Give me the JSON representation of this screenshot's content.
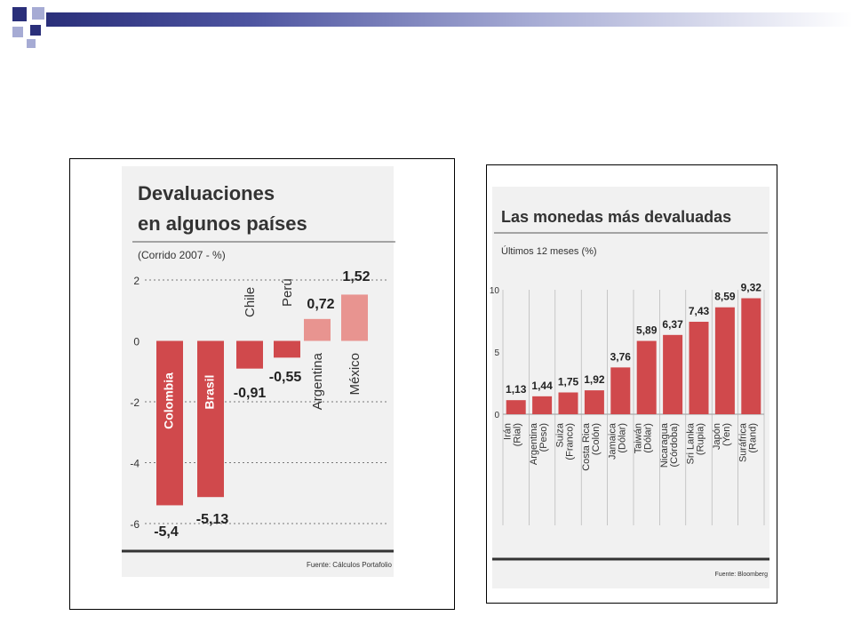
{
  "colors": {
    "slide_navy": "#2a2f7a",
    "slide_light": "#a6abd4",
    "bar_red": "#d0494c",
    "bar_pink": "#e89490",
    "panel_bg": "#f1f1f1"
  },
  "chart_data": [
    {
      "type": "bar",
      "title_line1": "Devaluaciones",
      "title_line2": "en algunos países",
      "subtitle": "(Corrido 2007 - %)",
      "categories": [
        "Colombia",
        "Brasil",
        "Chile",
        "Perú",
        "Argentina",
        "México"
      ],
      "values": [
        -5.4,
        -5.13,
        -0.91,
        -0.55,
        0.72,
        1.52
      ],
      "value_labels": [
        "-5,4",
        "-5,13",
        "-0,91",
        "-0,55",
        "0,72",
        "1,52"
      ],
      "ylim": [
        -6,
        2
      ],
      "yticks": [
        2,
        0,
        -2,
        -4,
        -6
      ],
      "ytick_labels": [
        "2",
        "0",
        "-2",
        "-4",
        "-6"
      ],
      "grid": "dotted",
      "source": "Fuente: Cálculos Portafolio"
    },
    {
      "type": "bar",
      "title": "Las monedas más devaluadas",
      "subtitle": "Últimos 12 meses (%)",
      "categories": [
        [
          "Irán",
          "(Rial)"
        ],
        [
          "Argentina",
          "(Peso)"
        ],
        [
          "Suiza",
          "(Franco)"
        ],
        [
          "Costa Rica",
          "(Colón)"
        ],
        [
          "Jamaica",
          "(Dólar)"
        ],
        [
          "Taiwán",
          "(Dólar)"
        ],
        [
          "Nicaragua",
          "(Córdoba)"
        ],
        [
          "Sri Lanka",
          "(Rupia)"
        ],
        [
          "Japón",
          "(Yen)"
        ],
        [
          "Suráfrica",
          "(Rand)"
        ]
      ],
      "values": [
        1.13,
        1.44,
        1.75,
        1.92,
        3.76,
        5.89,
        6.37,
        7.43,
        8.59,
        9.32
      ],
      "value_labels": [
        "1,13",
        "1,44",
        "1,75",
        "1,92",
        "3,76",
        "5,89",
        "6,37",
        "7,43",
        "8,59",
        "9,32"
      ],
      "ylim": [
        0,
        10
      ],
      "yticks": [
        10,
        5,
        0
      ],
      "ytick_labels": [
        "10",
        "5",
        "0"
      ],
      "source": "Fuente: Bloomberg"
    }
  ]
}
